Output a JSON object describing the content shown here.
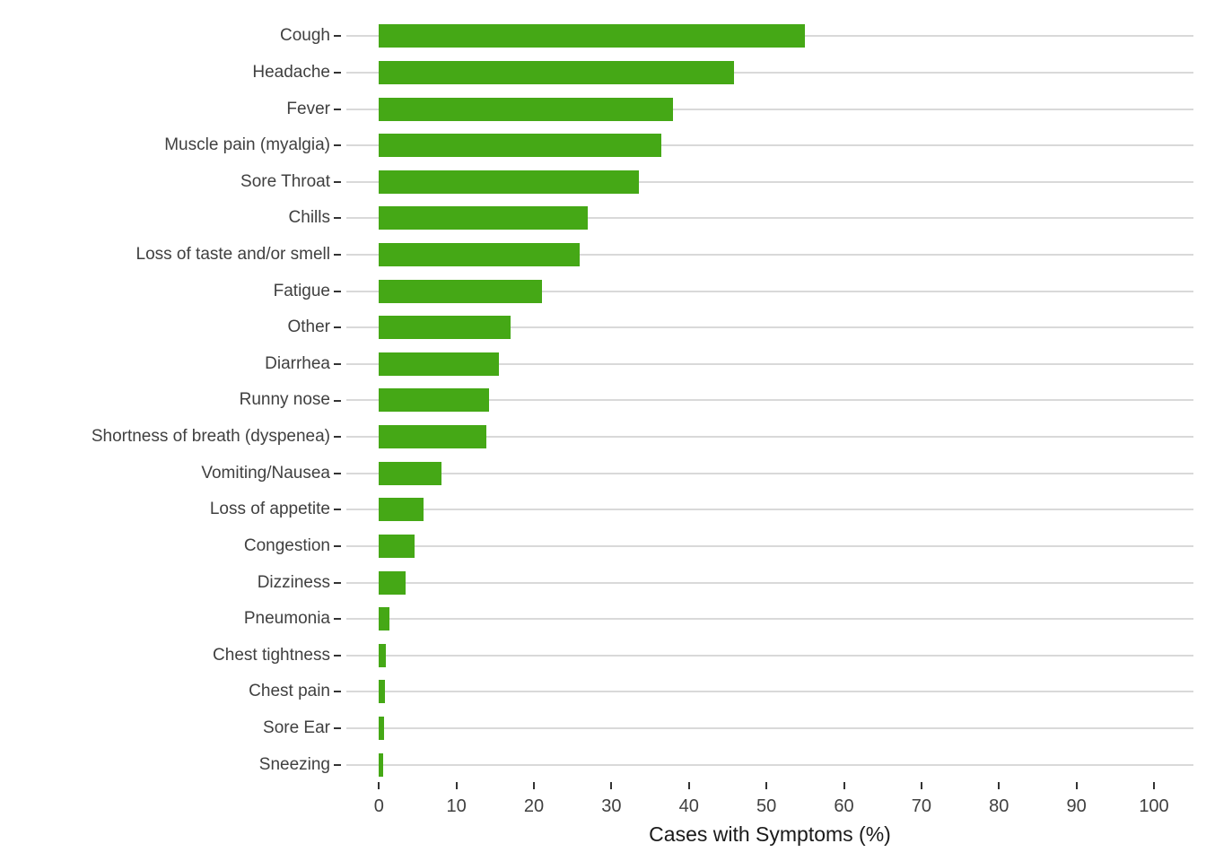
{
  "chart_data": {
    "type": "bar",
    "orientation": "horizontal",
    "title": "",
    "xlabel": "Cases with Symptoms (%)",
    "ylabel": "",
    "xlim": [
      0,
      100
    ],
    "x_ticks": [
      0,
      10,
      20,
      30,
      40,
      50,
      60,
      70,
      80,
      90,
      100
    ],
    "grid": "horizontal-major-only",
    "legend": "none",
    "categories": [
      "Cough",
      "Headache",
      "Fever",
      "Muscle pain (myalgia)",
      "Sore Throat",
      "Chills",
      "Loss of taste and/or smell",
      "Fatigue",
      "Other",
      "Diarrhea",
      "Runny nose",
      "Shortness of breath (dyspenea)",
      "Vomiting/Nausea",
      "Loss of appetite",
      "Congestion",
      "Dizziness",
      "Pneumonia",
      "Chest tightness",
      "Chest pain",
      "Sore Ear",
      "Sneezing"
    ],
    "values": [
      55.0,
      45.8,
      37.9,
      36.4,
      33.5,
      27.0,
      25.9,
      21.0,
      17.0,
      15.5,
      14.2,
      13.9,
      8.1,
      5.7,
      4.6,
      3.4,
      1.4,
      0.9,
      0.8,
      0.7,
      0.6
    ],
    "colors": {
      "bar": "#45A816",
      "gridline": "#D9D9D9",
      "tick": "#333333",
      "axis_text": "#404040",
      "axis_title": "#1A1A1A",
      "background": "#FFFFFF"
    }
  }
}
